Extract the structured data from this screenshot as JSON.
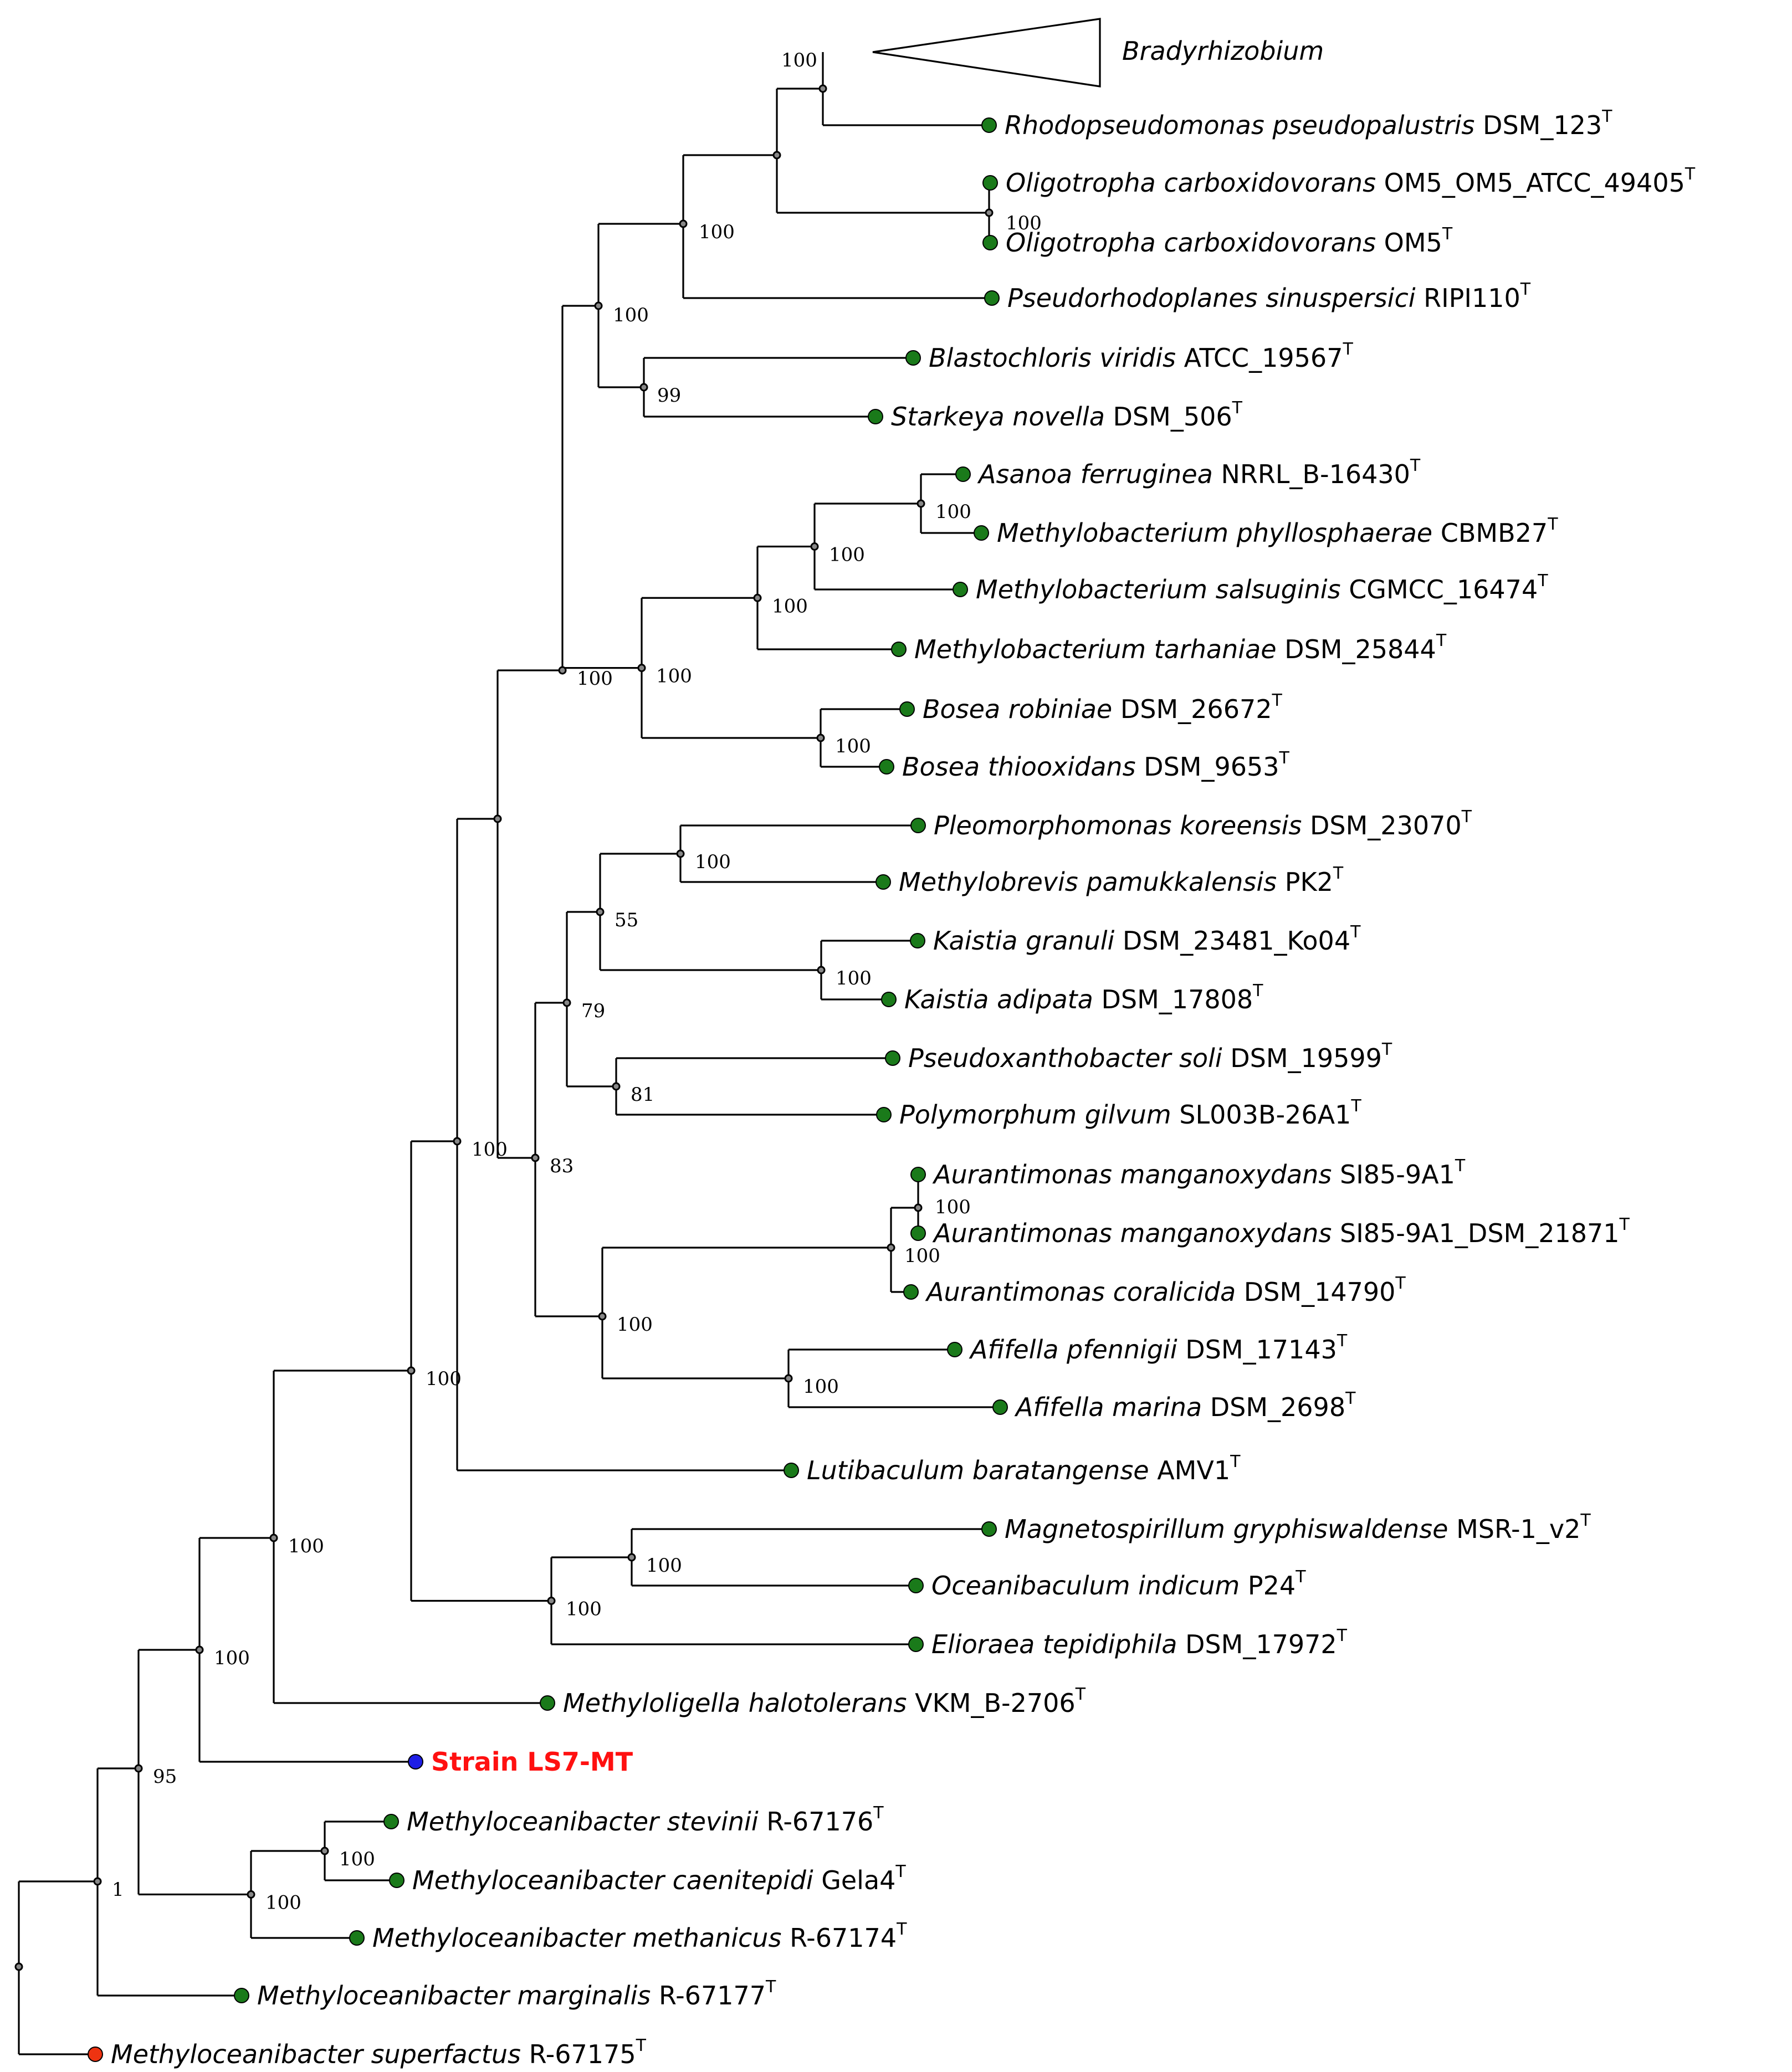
{
  "colors": {
    "type_strain": "#1a7a1a",
    "query_strain": "#1e1ee6",
    "outgroup": "#ee3311",
    "highlight_text": "#ff1010"
  },
  "collapsed_clade": {
    "label": "Bradyrhizobium"
  },
  "taxa": [
    {
      "id": "t1",
      "species": "Rhodopseudomonas pseudopalustris",
      "strain": "DSM_123",
      "sup": "T",
      "status": "type"
    },
    {
      "id": "t2",
      "species": "Oligotropha carboxidovorans",
      "strain": "OM5_OM5_ATCC_49405",
      "sup": "T",
      "status": "type"
    },
    {
      "id": "t3",
      "species": "Oligotropha carboxidovorans",
      "strain": "OM5",
      "sup": "T",
      "status": "type"
    },
    {
      "id": "t4",
      "species": "Pseudorhodoplanes sinuspersici",
      "strain": "RIPI110",
      "sup": "T",
      "status": "type"
    },
    {
      "id": "t5",
      "species": "Blastochloris viridis",
      "strain": "ATCC_19567",
      "sup": "T",
      "status": "type"
    },
    {
      "id": "t6",
      "species": "Starkeya novella",
      "strain": "DSM_506",
      "sup": "T",
      "status": "type"
    },
    {
      "id": "t7",
      "species": "Asanoa ferruginea",
      "strain": "NRRL_B-16430",
      "sup": "T",
      "status": "type"
    },
    {
      "id": "t8",
      "species": "Methylobacterium phyllosphaerae",
      "strain": "CBMB27",
      "sup": "T",
      "status": "type"
    },
    {
      "id": "t9",
      "species": "Methylobacterium salsuginis",
      "strain": "CGMCC_16474",
      "sup": "T",
      "status": "type"
    },
    {
      "id": "t10",
      "species": "Methylobacterium tarhaniae",
      "strain": "DSM_25844",
      "sup": "T",
      "status": "type"
    },
    {
      "id": "t11",
      "species": "Bosea robiniae",
      "strain": "DSM_26672",
      "sup": "T",
      "status": "type"
    },
    {
      "id": "t12",
      "species": "Bosea thiooxidans",
      "strain": "DSM_9653",
      "sup": "T",
      "status": "type"
    },
    {
      "id": "t13",
      "species": "Pleomorphomonas koreensis",
      "strain": "DSM_23070",
      "sup": "T",
      "status": "type"
    },
    {
      "id": "t14",
      "species": "Methylobrevis pamukkalensis",
      "strain": "PK2",
      "sup": "T",
      "status": "type"
    },
    {
      "id": "t15",
      "species": "Kaistia granuli",
      "strain": "DSM_23481_Ko04",
      "sup": "T",
      "status": "type"
    },
    {
      "id": "t16",
      "species": "Kaistia adipata",
      "strain": "DSM_17808",
      "sup": "T",
      "status": "type"
    },
    {
      "id": "t17",
      "species": "Pseudoxanthobacter soli",
      "strain": "DSM_19599",
      "sup": "T",
      "status": "type"
    },
    {
      "id": "t18",
      "species": "Polymorphum gilvum",
      "strain": "SL003B-26A1",
      "sup": "T",
      "status": "type"
    },
    {
      "id": "t19",
      "species": "Aurantimonas manganoxydans",
      "strain": "SI85-9A1",
      "sup": "T",
      "status": "type"
    },
    {
      "id": "t20",
      "species": "Aurantimonas manganoxydans",
      "strain": "SI85-9A1_DSM_21871",
      "sup": "T",
      "status": "type"
    },
    {
      "id": "t21",
      "species": "Aurantimonas coralicida",
      "strain": "DSM_14790",
      "sup": "T",
      "status": "type"
    },
    {
      "id": "t22",
      "species": "Afifella pfennigii",
      "strain": "DSM_17143",
      "sup": "T",
      "status": "type"
    },
    {
      "id": "t23",
      "species": "Afifella marina",
      "strain": "DSM_2698",
      "sup": "T",
      "status": "type"
    },
    {
      "id": "t24",
      "species": "Lutibaculum baratangense",
      "strain": "AMV1",
      "sup": "T",
      "status": "type"
    },
    {
      "id": "t25",
      "species": "Magnetospirillum gryphiswaldense",
      "strain": "MSR-1_v2",
      "sup": "T",
      "status": "type"
    },
    {
      "id": "t26",
      "species": "Oceanibaculum indicum",
      "strain": "P24",
      "sup": "T",
      "status": "type"
    },
    {
      "id": "t27",
      "species": "Elioraea tepidiphila",
      "strain": "DSM_17972",
      "sup": "T",
      "status": "type"
    },
    {
      "id": "t28",
      "species": "Methyloligella halotolerans",
      "strain": "VKM_B-2706",
      "sup": "T",
      "status": "type"
    },
    {
      "id": "t29",
      "species": "",
      "strain": "Strain LS7-MT",
      "sup": "",
      "status": "query"
    },
    {
      "id": "t30",
      "species": "Methyloceanibacter stevinii",
      "strain": "R-67176",
      "sup": "T",
      "status": "type"
    },
    {
      "id": "t31",
      "species": "Methyloceanibacter caenitepidi",
      "strain": "Gela4",
      "sup": "T",
      "status": "type"
    },
    {
      "id": "t32",
      "species": "Methyloceanibacter methanicus",
      "strain": "R-67174",
      "sup": "T",
      "status": "type"
    },
    {
      "id": "t33",
      "species": "Methyloceanibacter marginalis",
      "strain": "R-67177",
      "sup": "T",
      "status": "type"
    },
    {
      "id": "t34",
      "species": "Methyloceanibacter superfactus",
      "strain": "R-67175",
      "sup": "T",
      "status": "outgroup"
    }
  ],
  "bootstrap": {
    "bradyrhizobium_rhodopseudomonas": "100",
    "oligotropha": "100",
    "rhodo_oligotropha_pseudorhodoplanes": "100",
    "blastochloris_starkeya": "99",
    "bradyrhizobiaceae_group": "100",
    "asanoa_mphyllosphaerae": "100",
    "plus_msalsuginis": "100",
    "plus_mtarhaniae": "100",
    "bosea": "100",
    "methylobacterium_bosea": "100",
    "big_clade_a": "100",
    "pleomorphomonas_methylobrevis": "100",
    "kaistia": "100",
    "pleo_kaistia": "55",
    "pseudoxanthobacter_polymorphum": "81",
    "kaistia_pseudoxantho": "79",
    "aurantimonas_manganoxydans": "100",
    "aurantimonas": "100",
    "afifella": "100",
    "aurantimonas_afifella": "100",
    "group_83": "83",
    "with_lutibaculum": "100",
    "magneto_oceanibaculum": "100",
    "with_elioraea": "100",
    "ingroup_core": "100",
    "with_methyloligella": "100",
    "with_strain": "100",
    "stevinii_caenitepidi": "100",
    "methyloceanibacter_3": "100",
    "with_methyloceanibacter": "95",
    "with_marginalis": "1"
  }
}
